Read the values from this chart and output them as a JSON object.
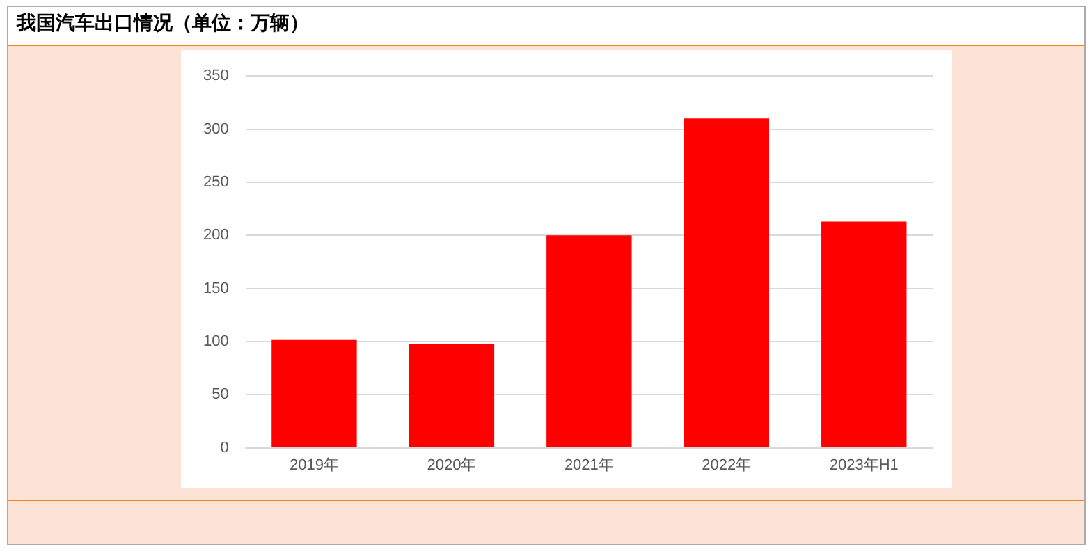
{
  "chart_data": {
    "type": "bar",
    "title": "我国汽车出口情况（单位：万辆）",
    "categories": [
      "2019年",
      "2020年",
      "2021年",
      "2022年",
      "2023年H1"
    ],
    "values": [
      102,
      98,
      200,
      310,
      213
    ],
    "color": "#ff0000",
    "ylim": [
      0,
      350
    ],
    "yticks": [
      0,
      50,
      100,
      150,
      200,
      250,
      300,
      350
    ],
    "grid": "y",
    "legend": false
  }
}
